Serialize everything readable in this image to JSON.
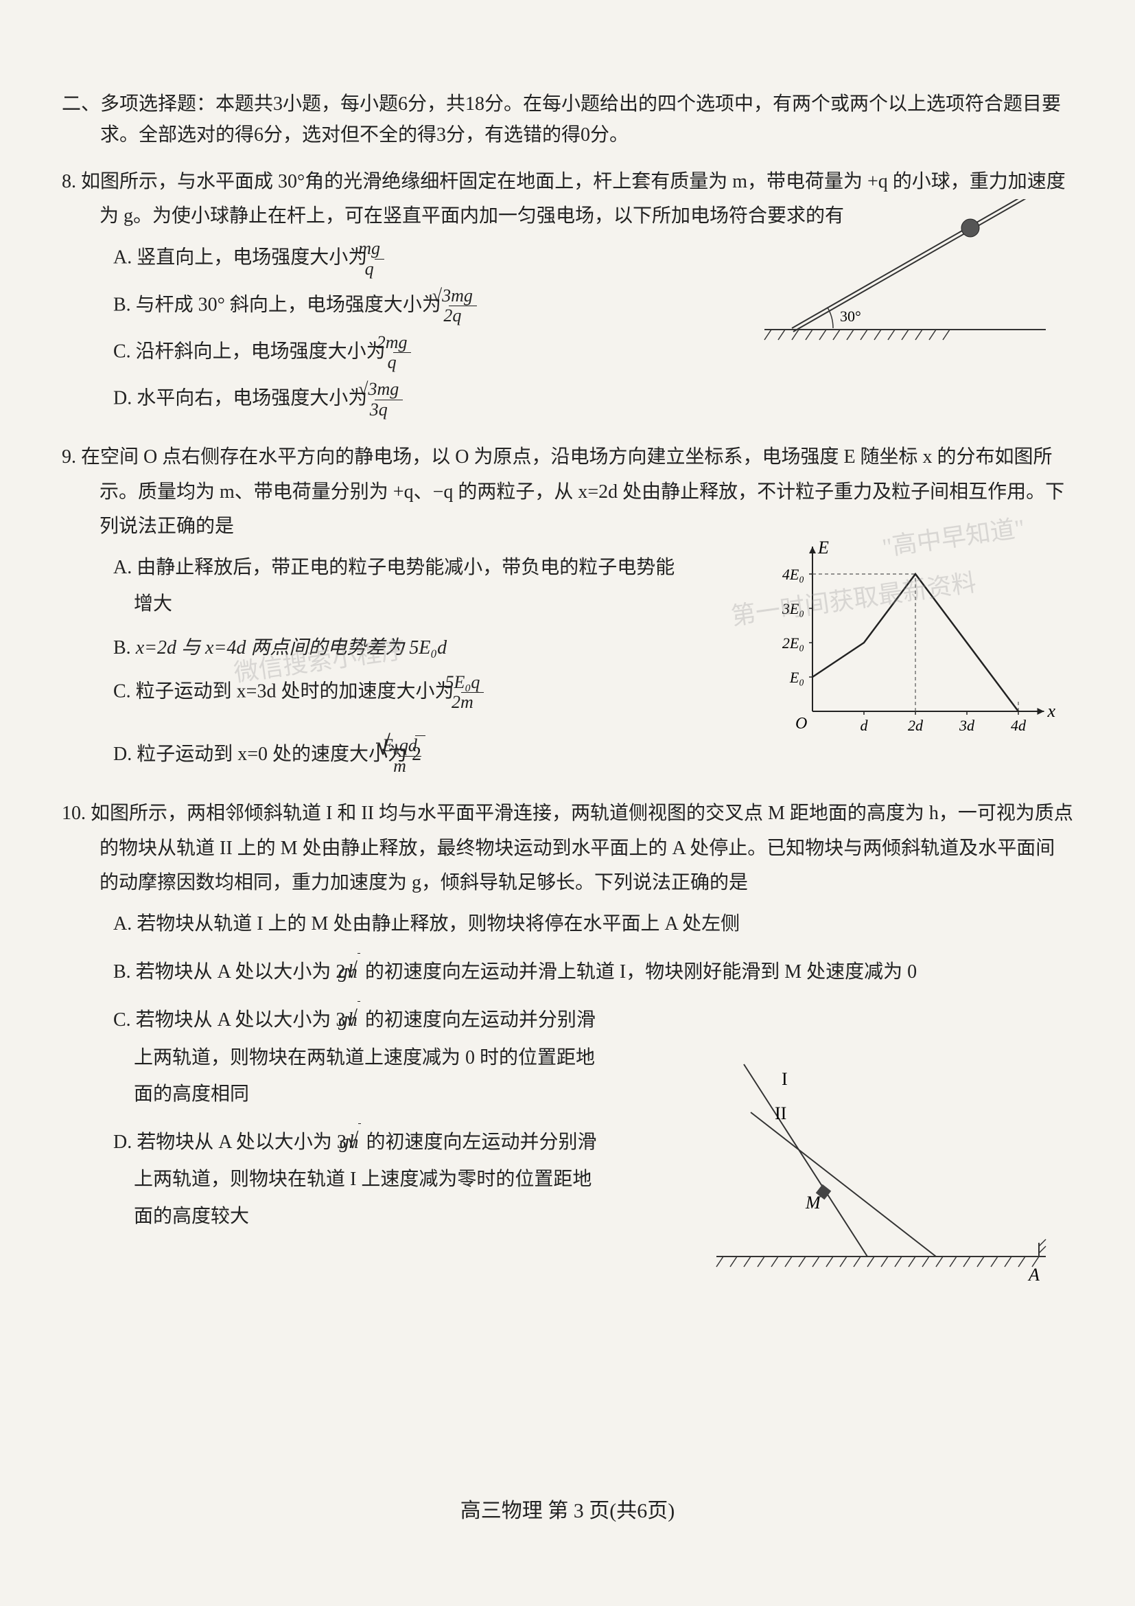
{
  "section2": {
    "header": "二、多项选择题：本题共3小题，每小题6分，共18分。在每小题给出的四个选项中，有两个或两个以上选项符合题目要求。全部选对的得6分，选对但不全的得3分，有选错的得0分。"
  },
  "q8": {
    "num": "8.",
    "stem": "如图所示，与水平面成 30°角的光滑绝缘细杆固定在地面上，杆上套有质量为 m，带电荷量为 +q 的小球，重力加速度为 g。为使小球静止在杆上，可在竖直平面内加一匀强电场，以下所加电场符合要求的有",
    "opt_a_prefix": "A.  竖直向上，电场强度大小为",
    "opt_a_num": "mg",
    "opt_a_den": "q",
    "opt_b_prefix": "B.  与杆成 30° 斜向上，电场强度大小为",
    "opt_b_num": "√3mg",
    "opt_b_den": "2q",
    "opt_c_prefix": "C.  沿杆斜向上，电场强度大小为",
    "opt_c_num": "2mg",
    "opt_c_den": "q",
    "opt_d_prefix": "D.  水平向右，电场强度大小为",
    "opt_d_num": "√3mg",
    "opt_d_den": "3q",
    "figure": {
      "angle_label": "30°",
      "ground_color": "#333",
      "rod_color": "#333",
      "ball_color": "#444"
    }
  },
  "q9": {
    "num": "9.",
    "stem": "在空间 O 点右侧存在水平方向的静电场，以 O 为原点，沿电场方向建立坐标系，电场强度 E 随坐标 x 的分布如图所示。质量均为 m、带电荷量分别为 +q、−q 的两粒子，从 x=2d 处由静止释放，不计粒子重力及粒子间相互作用。下列说法正确的是",
    "opt_a": "A.  由静止释放后，带正电的粒子电势能减小，带负电的粒子电势能增大",
    "opt_b_prefix": "B.  ",
    "opt_b_body": "x=2d 与 x=4d 两点间的电势差为 5E₀d",
    "opt_c_prefix": "C.  粒子运动到 x=3d 处时的加速度大小为",
    "opt_c_num": "5E₀q",
    "opt_c_den": "2m",
    "opt_d_prefix": "D.  粒子运动到 x=0 处的速度大小为 2",
    "opt_d_sqrt_num": "E₀qd",
    "opt_d_sqrt_den": "m",
    "graph": {
      "y_label": "E",
      "x_label": "x",
      "y_ticks": [
        "E₀",
        "2E₀",
        "3E₀",
        "4E₀"
      ],
      "x_ticks": [
        "d",
        "2d",
        "3d",
        "4d"
      ],
      "origin": "O",
      "axis_color": "#222",
      "line_color": "#222",
      "dash_color": "#555",
      "points_x": [
        0,
        1,
        2,
        4
      ],
      "points_y": [
        1,
        2,
        4,
        0
      ]
    }
  },
  "q10": {
    "num": "10.",
    "stem": "如图所示，两相邻倾斜轨道 I 和 II 均与水平面平滑连接，两轨道侧视图的交叉点 M 距地面的高度为 h，一可视为质点的物块从轨道 II 上的 M 处由静止释放，最终物块运动到水平面上的 A 处停止。已知物块与两倾斜轨道及水平面间的动摩擦因数均相同，重力加速度为 g，倾斜导轨足够长。下列说法正确的是",
    "opt_a": "A.  若物块从轨道 I 上的 M 处由静止释放，则物块将停在水平面上 A 处左侧",
    "opt_b_prefix": "B.  若物块从 A 处以大小为 2",
    "opt_b_sqrt": "gh",
    "opt_b_suffix": " 的初速度向左运动并滑上轨道 I，物块刚好能滑到 M 处速度减为 0",
    "opt_c_prefix": "C.  若物块从 A 处以大小为 3",
    "opt_c_sqrt": "gh",
    "opt_c_suffix": " 的初速度向左运动并分别滑上两轨道，则物块在两轨道上速度减为 0 时的位置距地面的高度相同",
    "opt_d_prefix": "D.  若物块从 A 处以大小为 3",
    "opt_d_sqrt": "gh",
    "opt_d_suffix": " 的初速度向左运动并分别滑上两轨道，则物块在轨道 I 上速度减为零时的位置距地面的高度较大",
    "figure": {
      "label_I": "I",
      "label_II": "II",
      "label_M": "M",
      "label_A": "A",
      "line_color": "#333"
    }
  },
  "footer": "高三物理  第 3 页(共6页)",
  "watermarks": {
    "w1": "\"高中早知道\"",
    "w2": "微信搜索小程序",
    "w3": "第一时间获取最新资料"
  }
}
